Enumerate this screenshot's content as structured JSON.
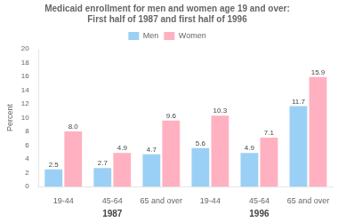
{
  "chart_data": {
    "type": "bar",
    "title": "Medicaid enrollment for men and women age 19 and over:\nFirst half of 1987 and first half of 1996",
    "ylabel": "Percent",
    "categories": [
      "19-44",
      "45-64",
      "65 and over",
      "19-44",
      "45-64",
      "65 and over"
    ],
    "annotations": [
      "1987",
      "1996"
    ],
    "series": [
      {
        "name": "Men",
        "values": [
          2.5,
          2.7,
          4.7,
          5.6,
          4.9,
          11.7
        ]
      },
      {
        "name": "Women",
        "values": [
          8.0,
          4.9,
          9.6,
          10.3,
          7.1,
          15.9
        ],
        "value_labels": [
          "8.0",
          "4.9",
          "9.6",
          "10.3",
          "7.1",
          "15.9"
        ]
      }
    ],
    "ylim": [
      0,
      20
    ],
    "yticks": [
      0,
      2,
      4,
      6,
      8,
      10,
      12,
      14,
      16,
      18,
      20
    ],
    "grid": false,
    "legend": "top",
    "data_labels": true
  }
}
